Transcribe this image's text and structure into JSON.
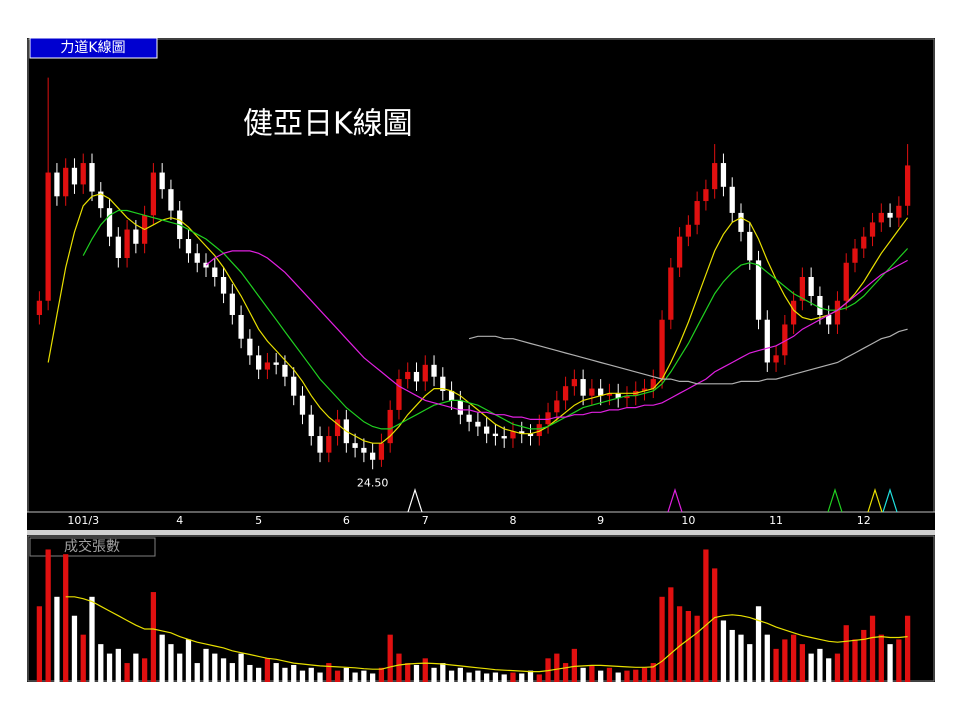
{
  "chart_data": [
    {
      "type": "candlestick",
      "title": "健亞日K線圖",
      "panel_label": "力道K線圖",
      "categories": [
        null,
        null,
        null,
        null,
        null,
        "101/3",
        null,
        null,
        null,
        null,
        null,
        null,
        null,
        null,
        null,
        null,
        "4",
        null,
        null,
        null,
        null,
        null,
        null,
        null,
        null,
        "5",
        null,
        null,
        null,
        null,
        null,
        null,
        null,
        null,
        null,
        "6",
        null,
        null,
        null,
        null,
        null,
        null,
        null,
        null,
        "7",
        null,
        null,
        null,
        null,
        null,
        null,
        null,
        null,
        null,
        "8",
        null,
        null,
        null,
        null,
        null,
        null,
        null,
        null,
        null,
        "9",
        null,
        null,
        null,
        null,
        null,
        null,
        null,
        null,
        null,
        "10",
        null,
        null,
        null,
        null,
        null,
        null,
        null,
        null,
        null,
        "11",
        null,
        null,
        null,
        null,
        null,
        null,
        null,
        null,
        null,
        "12",
        null,
        null,
        null,
        null,
        null
      ],
      "open": [
        31.0,
        31.6,
        37.0,
        36.0,
        37.2,
        36.5,
        37.4,
        36.2,
        35.5,
        34.3,
        33.4,
        34.6,
        34.0,
        35.2,
        37.0,
        36.3,
        35.4,
        34.2,
        33.6,
        33.2,
        33.0,
        32.6,
        31.9,
        31.0,
        30.0,
        29.3,
        28.7,
        29.0,
        28.9,
        28.4,
        27.6,
        26.8,
        25.9,
        25.2,
        25.9,
        26.6,
        25.6,
        25.4,
        25.2,
        24.9,
        25.6,
        27.0,
        28.3,
        28.6,
        28.2,
        28.9,
        28.4,
        27.8,
        27.4,
        26.8,
        26.5,
        26.3,
        26.0,
        25.9,
        25.8,
        26.1,
        26.0,
        25.9,
        26.4,
        26.9,
        27.4,
        28.0,
        28.3,
        27.6,
        27.9,
        27.6,
        27.7,
        27.5,
        27.6,
        27.8,
        27.9,
        28.3,
        30.8,
        33.0,
        34.3,
        34.8,
        35.8,
        36.3,
        37.4,
        36.4,
        35.3,
        34.5,
        33.3,
        30.8,
        29.0,
        29.3,
        30.6,
        31.6,
        32.6,
        31.8,
        31.0,
        30.6,
        31.6,
        33.2,
        33.8,
        34.3,
        34.9,
        35.3,
        35.1,
        35.6
      ],
      "high": [
        32.0,
        41.0,
        37.4,
        37.6,
        37.6,
        37.8,
        37.8,
        36.6,
        35.9,
        34.7,
        35.0,
        35.0,
        35.6,
        37.4,
        37.4,
        36.7,
        35.8,
        34.6,
        34.0,
        33.6,
        33.4,
        33.0,
        32.3,
        31.4,
        30.4,
        29.7,
        29.4,
        29.4,
        29.3,
        28.8,
        28.0,
        27.2,
        26.3,
        26.3,
        27.0,
        27.0,
        26.0,
        25.8,
        25.6,
        26.0,
        27.4,
        28.7,
        29.0,
        29.0,
        29.3,
        29.3,
        28.8,
        28.2,
        27.8,
        27.2,
        26.9,
        26.7,
        26.4,
        26.3,
        26.5,
        26.5,
        26.4,
        26.8,
        27.3,
        27.8,
        28.4,
        28.7,
        28.7,
        28.3,
        28.3,
        28.1,
        28.1,
        28.0,
        28.2,
        28.3,
        28.7,
        31.2,
        33.4,
        34.7,
        35.2,
        36.2,
        36.7,
        38.2,
        37.8,
        36.8,
        35.7,
        34.9,
        33.7,
        31.2,
        29.7,
        31.0,
        32.0,
        33.0,
        33.0,
        32.2,
        31.4,
        32.0,
        33.6,
        34.2,
        34.7,
        35.3,
        35.7,
        35.7,
        36.0,
        38.2
      ],
      "low": [
        30.6,
        31.2,
        35.6,
        35.6,
        36.1,
        36.1,
        35.8,
        35.1,
        33.9,
        33.0,
        33.0,
        33.6,
        33.6,
        34.8,
        35.9,
        35.0,
        33.8,
        33.2,
        32.8,
        32.6,
        32.2,
        31.5,
        30.6,
        29.6,
        28.9,
        28.3,
        28.3,
        28.5,
        28.0,
        27.2,
        26.4,
        25.5,
        24.8,
        24.8,
        25.5,
        25.2,
        25.0,
        24.8,
        24.5,
        24.6,
        25.2,
        26.6,
        27.9,
        27.8,
        27.8,
        28.0,
        27.4,
        27.0,
        26.4,
        26.1,
        25.9,
        25.6,
        25.5,
        25.4,
        25.4,
        25.6,
        25.5,
        25.5,
        26.0,
        26.5,
        27.0,
        27.6,
        27.2,
        27.2,
        27.2,
        27.2,
        27.1,
        27.1,
        27.2,
        27.4,
        27.5,
        27.9,
        30.4,
        32.6,
        33.9,
        34.4,
        35.4,
        35.9,
        36.0,
        34.9,
        34.1,
        32.9,
        30.4,
        28.6,
        28.6,
        28.9,
        30.2,
        31.2,
        31.4,
        30.6,
        30.2,
        30.2,
        31.2,
        32.8,
        33.4,
        33.9,
        34.5,
        34.7,
        34.7,
        35.2
      ],
      "close": [
        31.6,
        37.0,
        36.0,
        37.2,
        36.5,
        37.4,
        36.2,
        35.5,
        34.3,
        33.4,
        34.6,
        34.0,
        35.2,
        37.0,
        36.3,
        35.4,
        34.2,
        33.6,
        33.2,
        33.0,
        32.6,
        31.9,
        31.0,
        30.0,
        29.3,
        28.7,
        29.0,
        28.9,
        28.4,
        27.6,
        26.8,
        25.9,
        25.2,
        25.9,
        26.6,
        25.6,
        25.4,
        25.2,
        24.9,
        25.6,
        27.0,
        28.3,
        28.6,
        28.2,
        28.9,
        28.4,
        27.8,
        27.4,
        26.8,
        26.5,
        26.3,
        26.0,
        25.9,
        25.8,
        26.1,
        26.0,
        25.9,
        26.4,
        26.9,
        27.4,
        28.0,
        28.3,
        27.6,
        27.9,
        27.6,
        27.7,
        27.5,
        27.6,
        27.8,
        27.9,
        28.3,
        30.8,
        33.0,
        34.3,
        34.8,
        35.8,
        36.3,
        37.4,
        36.4,
        35.3,
        34.5,
        33.3,
        30.8,
        29.0,
        29.3,
        30.6,
        31.6,
        32.6,
        31.8,
        31.0,
        30.6,
        31.6,
        33.2,
        33.8,
        34.3,
        34.9,
        35.3,
        35.1,
        35.6,
        37.3
      ],
      "up_color": "#e01010",
      "down_color": "#ffffff",
      "ylim": [
        22.7,
        42.5
      ],
      "series": [
        {
          "color": "#e8e000",
          "values": [
            null,
            29.0,
            31.0,
            33.0,
            34.5,
            35.6,
            36.0,
            36.1,
            35.9,
            35.5,
            35.1,
            34.8,
            34.6,
            34.8,
            35.0,
            35.1,
            35.0,
            34.7,
            34.3,
            33.9,
            33.5,
            33.0,
            32.4,
            31.8,
            31.1,
            30.4,
            29.9,
            29.5,
            29.1,
            28.7,
            28.2,
            27.6,
            27.1,
            26.7,
            26.4,
            26.1,
            25.9,
            25.7,
            25.6,
            25.6,
            25.9,
            26.3,
            26.8,
            27.2,
            27.6,
            27.9,
            27.9,
            27.8,
            27.6,
            27.3,
            27.0,
            26.7,
            26.4,
            26.2,
            26.1,
            26.0,
            26.0,
            26.1,
            26.3,
            26.6,
            26.9,
            27.2,
            27.4,
            27.5,
            27.6,
            27.7,
            27.7,
            27.7,
            27.7,
            27.8,
            27.9,
            28.3,
            29.0,
            29.8,
            30.7,
            31.7,
            32.7,
            33.7,
            34.4,
            34.9,
            35.1,
            34.9,
            34.2,
            33.3,
            32.5,
            31.8,
            31.2,
            30.9,
            30.8,
            30.9,
            31.0,
            31.2,
            31.5,
            31.9,
            32.4,
            33.0,
            33.6,
            34.1,
            34.6,
            35.1
          ]
        },
        {
          "color": "#20d020",
          "values": [
            null,
            null,
            null,
            null,
            null,
            33.5,
            34.2,
            34.8,
            35.2,
            35.4,
            35.4,
            35.3,
            35.2,
            35.1,
            35.0,
            34.9,
            34.8,
            34.6,
            34.4,
            34.2,
            33.9,
            33.6,
            33.2,
            32.8,
            32.3,
            31.8,
            31.3,
            30.8,
            30.3,
            29.8,
            29.3,
            28.8,
            28.3,
            27.9,
            27.5,
            27.1,
            26.8,
            26.5,
            26.3,
            26.2,
            26.2,
            26.4,
            26.6,
            26.8,
            27.0,
            27.2,
            27.3,
            27.4,
            27.4,
            27.3,
            27.2,
            27.0,
            26.8,
            26.6,
            26.4,
            26.3,
            26.2,
            26.2,
            26.3,
            26.5,
            26.7,
            26.9,
            27.1,
            27.2,
            27.3,
            27.4,
            27.5,
            27.6,
            27.6,
            27.7,
            27.8,
            28.1,
            28.6,
            29.2,
            29.8,
            30.5,
            31.2,
            31.9,
            32.4,
            32.8,
            33.1,
            33.2,
            33.1,
            32.8,
            32.5,
            32.2,
            31.9,
            31.7,
            31.5,
            31.3,
            31.2,
            31.2,
            31.3,
            31.5,
            31.8,
            32.2,
            32.6,
            33.0,
            33.4,
            33.8
          ]
        },
        {
          "color": "#e020e0",
          "values": [
            null,
            null,
            null,
            null,
            null,
            null,
            null,
            null,
            null,
            null,
            null,
            null,
            null,
            null,
            null,
            null,
            null,
            null,
            null,
            33.1,
            33.4,
            33.6,
            33.7,
            33.7,
            33.7,
            33.6,
            33.4,
            33.1,
            32.8,
            32.4,
            32.0,
            31.6,
            31.2,
            30.8,
            30.4,
            30.0,
            29.6,
            29.2,
            28.9,
            28.6,
            28.3,
            28.0,
            27.8,
            27.6,
            27.4,
            27.3,
            27.2,
            27.1,
            27.0,
            27.0,
            26.9,
            26.9,
            26.8,
            26.8,
            26.7,
            26.7,
            26.6,
            26.6,
            26.6,
            26.7,
            26.7,
            26.8,
            26.8,
            26.9,
            26.9,
            27.0,
            27.0,
            27.1,
            27.1,
            27.2,
            27.2,
            27.3,
            27.5,
            27.7,
            27.9,
            28.1,
            28.3,
            28.6,
            28.8,
            29.0,
            29.2,
            29.4,
            29.5,
            29.6,
            29.7,
            29.9,
            30.1,
            30.4,
            30.6,
            30.8,
            31.0,
            31.2,
            31.5,
            31.8,
            32.1,
            32.4,
            32.7,
            32.9,
            33.1,
            33.3
          ]
        },
        {
          "color": "#b0b0b0",
          "values": [
            null,
            null,
            null,
            null,
            null,
            null,
            null,
            null,
            null,
            null,
            null,
            null,
            null,
            null,
            null,
            null,
            null,
            null,
            null,
            null,
            null,
            null,
            null,
            null,
            null,
            null,
            null,
            null,
            null,
            null,
            null,
            null,
            null,
            null,
            null,
            null,
            null,
            null,
            null,
            null,
            null,
            null,
            null,
            null,
            null,
            null,
            null,
            null,
            null,
            30.0,
            30.1,
            30.1,
            30.1,
            30.0,
            30.0,
            29.9,
            29.8,
            29.7,
            29.6,
            29.5,
            29.4,
            29.3,
            29.2,
            29.1,
            29.0,
            28.9,
            28.8,
            28.7,
            28.6,
            28.5,
            28.4,
            28.3,
            28.3,
            28.2,
            28.2,
            28.1,
            28.1,
            28.1,
            28.1,
            28.1,
            28.2,
            28.2,
            28.2,
            28.3,
            28.3,
            28.4,
            28.5,
            28.6,
            28.7,
            28.8,
            28.9,
            29.0,
            29.2,
            29.4,
            29.6,
            29.8,
            30.0,
            30.1,
            30.3,
            30.4
          ]
        }
      ],
      "annotations": [
        {
          "text": "24.50",
          "value": 24.5
        }
      ]
    },
    {
      "type": "bar",
      "panel_label": "成交張數",
      "values": [
        800,
        1400,
        900,
        1350,
        700,
        500,
        900,
        400,
        300,
        350,
        200,
        300,
        250,
        950,
        500,
        400,
        300,
        450,
        200,
        350,
        300,
        250,
        200,
        300,
        180,
        150,
        250,
        200,
        150,
        180,
        120,
        150,
        100,
        200,
        120,
        150,
        100,
        120,
        90,
        150,
        500,
        300,
        200,
        180,
        250,
        150,
        200,
        120,
        150,
        100,
        120,
        90,
        100,
        80,
        100,
        90,
        120,
        80,
        250,
        300,
        200,
        350,
        150,
        180,
        120,
        150,
        100,
        120,
        130,
        150,
        200,
        900,
        1000,
        800,
        750,
        700,
        1400,
        1200,
        650,
        550,
        500,
        400,
        800,
        500,
        350,
        450,
        500,
        400,
        300,
        350,
        250,
        300,
        600,
        450,
        550,
        700,
        500,
        400,
        450,
        700
      ],
      "up_color": "#e01010",
      "down_color": "#ffffff",
      "ylim": [
        0,
        1500
      ],
      "series": [
        {
          "color": "#e8e000",
          "values": [
            null,
            null,
            null,
            900,
            900,
            880,
            850,
            800,
            750,
            700,
            650,
            600,
            560,
            560,
            540,
            520,
            480,
            450,
            420,
            400,
            380,
            360,
            330,
            310,
            290,
            270,
            250,
            240,
            220,
            200,
            190,
            180,
            170,
            165,
            160,
            155,
            150,
            140,
            135,
            135,
            160,
            180,
            190,
            195,
            200,
            195,
            190,
            180,
            170,
            160,
            150,
            140,
            130,
            125,
            120,
            115,
            110,
            110,
            120,
            135,
            150,
            165,
            170,
            175,
            175,
            170,
            165,
            160,
            155,
            155,
            160,
            220,
            300,
            380,
            450,
            520,
            600,
            680,
            700,
            710,
            700,
            680,
            650,
            620,
            580,
            550,
            520,
            490,
            470,
            450,
            430,
            420,
            430,
            440,
            450,
            470,
            480,
            470,
            470,
            480
          ]
        }
      ]
    }
  ]
}
